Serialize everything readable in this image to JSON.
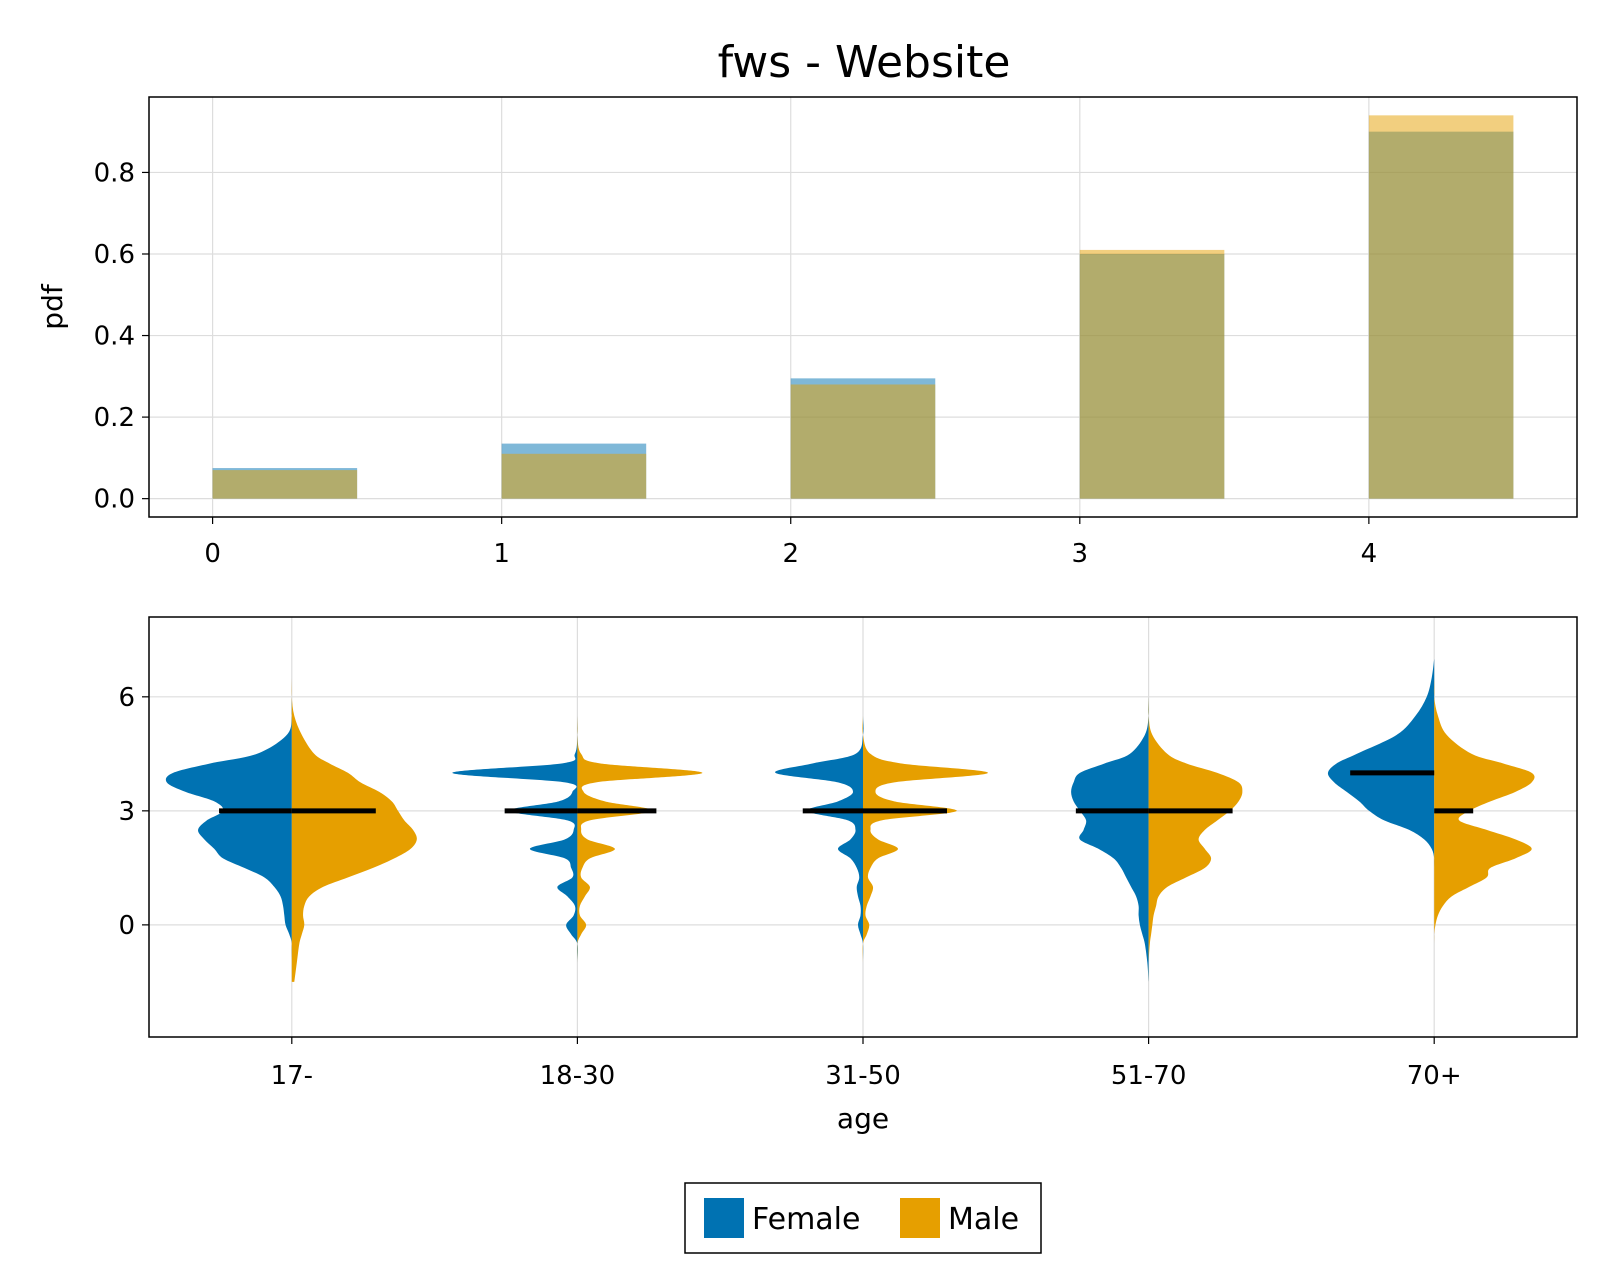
{
  "title": "fws - Website",
  "colors": {
    "female": "#0072b2",
    "male": "#e69f00"
  },
  "legend": {
    "entries": [
      "Female",
      "Male"
    ]
  },
  "chart_data": [
    {
      "type": "bar",
      "ylabel": "pdf",
      "xlabel": "",
      "x": [
        0,
        1,
        2,
        3,
        4
      ],
      "x_ticks": [
        "0",
        "1",
        "2",
        "3",
        "4"
      ],
      "y_ticks": [
        "0.0",
        "0.2",
        "0.4",
        "0.6",
        "0.8"
      ],
      "y_tick_values": [
        0,
        0.2,
        0.4,
        0.6,
        0.8
      ],
      "xlim": [
        -0.22,
        4.72
      ],
      "ylim": [
        -0.045,
        0.985
      ],
      "grid": true,
      "series": [
        {
          "name": "Female",
          "values": [
            0.075,
            0.135,
            0.295,
            0.6,
            0.9
          ]
        },
        {
          "name": "Male",
          "values": [
            0.07,
            0.11,
            0.28,
            0.61,
            0.94
          ]
        }
      ]
    },
    {
      "type": "violin",
      "xlabel": "age",
      "ylabel": "",
      "categories": [
        "17-",
        "18-30",
        "31-50",
        "51-70",
        "70+"
      ],
      "y_ticks": [
        "0",
        "3",
        "6"
      ],
      "y_tick_values": [
        0,
        3,
        6
      ],
      "ylim": [
        -2.95,
        8.1
      ],
      "grid": true,
      "density_y": [
        -1.5,
        -1.0,
        -0.5,
        -0.25,
        0,
        0.25,
        0.5,
        0.75,
        1,
        1.25,
        1.5,
        1.75,
        2,
        2.25,
        2.5,
        2.75,
        3,
        3.25,
        3.5,
        3.75,
        4,
        4.25,
        4.5,
        5,
        5.5,
        6,
        6.5,
        7
      ],
      "violins": [
        {
          "female": [
            0,
            0,
            0,
            0.02,
            0.05,
            0.06,
            0.07,
            0.09,
            0.14,
            0.22,
            0.38,
            0.55,
            0.62,
            0.7,
            0.75,
            0.68,
            0.55,
            0.62,
            0.85,
            1.0,
            0.95,
            0.65,
            0.28,
            0.04,
            0,
            0,
            0,
            0
          ],
          "male": [
            0.02,
            0.04,
            0.06,
            0.08,
            0.1,
            0.09,
            0.1,
            0.14,
            0.25,
            0.45,
            0.65,
            0.82,
            0.95,
            1.0,
            0.97,
            0.9,
            0.85,
            0.8,
            0.7,
            0.55,
            0.45,
            0.3,
            0.18,
            0.08,
            0.02,
            0,
            0,
            0
          ],
          "female_median": 3,
          "male_median": 3
        },
        {
          "female": [
            0,
            0,
            0,
            0.05,
            0.09,
            0.03,
            0.02,
            0.08,
            0.16,
            0.04,
            0.05,
            0.1,
            0.38,
            0.1,
            0.03,
            0.08,
            0.55,
            0.15,
            0.04,
            0.1,
            1.0,
            0.12,
            0.02,
            0,
            0,
            0,
            0,
            0
          ],
          "male": [
            0,
            0,
            0,
            0.03,
            0.07,
            0.02,
            0.02,
            0.06,
            0.1,
            0.03,
            0.04,
            0.1,
            0.3,
            0.08,
            0.03,
            0.1,
            0.6,
            0.22,
            0.05,
            0.15,
            1.0,
            0.18,
            0.03,
            0,
            0,
            0,
            0,
            0
          ],
          "female_median": 3,
          "male_median": 3
        },
        {
          "female": [
            0,
            0,
            0,
            0.02,
            0.04,
            0.02,
            0.02,
            0.04,
            0.05,
            0.03,
            0.05,
            0.1,
            0.2,
            0.1,
            0.06,
            0.12,
            0.45,
            0.2,
            0.08,
            0.2,
            0.7,
            0.4,
            0.06,
            0,
            0,
            0,
            0,
            0
          ],
          "male": [
            0,
            0,
            0,
            0.03,
            0.05,
            0.02,
            0.03,
            0.06,
            0.08,
            0.04,
            0.06,
            0.12,
            0.28,
            0.12,
            0.06,
            0.15,
            0.75,
            0.25,
            0.1,
            0.25,
            1.0,
            0.3,
            0.06,
            0,
            0,
            0,
            0,
            0
          ],
          "female_median": 3,
          "male_median": 3
        },
        {
          "female": [
            0,
            0.01,
            0.03,
            0.05,
            0.07,
            0.08,
            0.08,
            0.1,
            0.14,
            0.18,
            0.22,
            0.28,
            0.4,
            0.55,
            0.52,
            0.5,
            0.55,
            0.6,
            0.62,
            0.6,
            0.55,
            0.35,
            0.15,
            0.03,
            0,
            0,
            0,
            0
          ],
          "male": [
            0,
            0,
            0.01,
            0.02,
            0.03,
            0.04,
            0.06,
            0.08,
            0.15,
            0.3,
            0.45,
            0.5,
            0.45,
            0.4,
            0.45,
            0.55,
            0.65,
            0.72,
            0.75,
            0.72,
            0.55,
            0.3,
            0.15,
            0.03,
            0,
            0,
            0,
            0
          ],
          "female_median": 3,
          "male_median": 3
        },
        {
          "female": [
            0,
            0,
            0,
            0,
            0,
            0,
            0,
            0,
            0,
            0,
            0,
            0,
            0.02,
            0.08,
            0.2,
            0.4,
            0.52,
            0.6,
            0.7,
            0.8,
            0.85,
            0.78,
            0.62,
            0.3,
            0.15,
            0.06,
            0.02,
            0
          ],
          "male": [
            0,
            0,
            0,
            0,
            0.01,
            0.03,
            0.07,
            0.14,
            0.28,
            0.42,
            0.45,
            0.65,
            0.78,
            0.65,
            0.42,
            0.2,
            0.28,
            0.45,
            0.65,
            0.78,
            0.78,
            0.55,
            0.3,
            0.1,
            0.03,
            0,
            0,
            0
          ],
          "female_median": 4,
          "male_median": 3
        }
      ]
    }
  ]
}
